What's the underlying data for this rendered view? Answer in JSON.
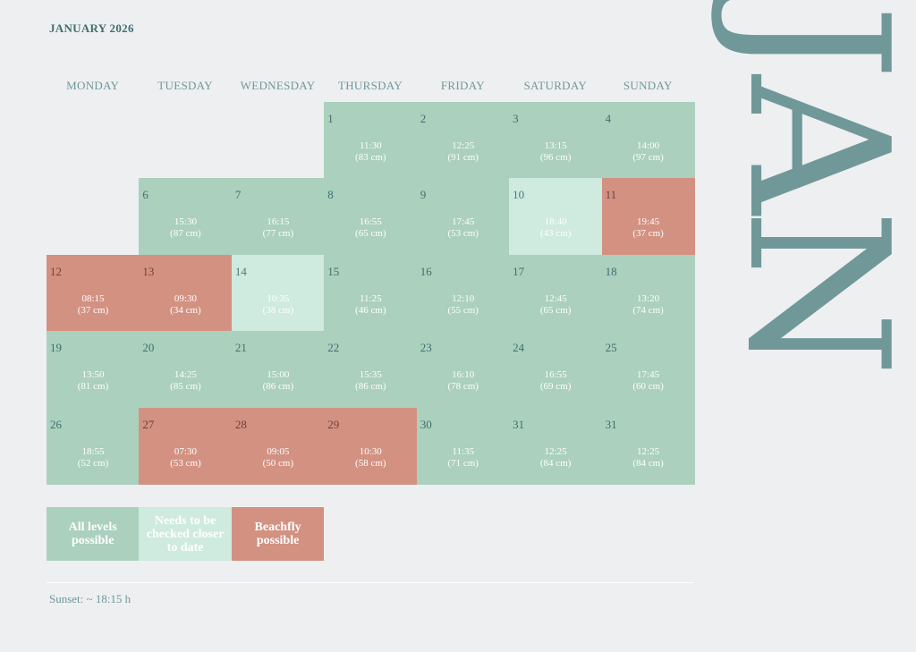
{
  "title": "JANUARY 2026",
  "big_month": "JAN",
  "weekdays": [
    "MONDAY",
    "TUESDAY",
    "WEDNESDAY",
    "THURSDAY",
    "FRIDAY",
    "SATURDAY",
    "SUNDAY"
  ],
  "colors": {
    "background": "#eeeff1",
    "all_levels": "#abd0bd",
    "check_later": "#cfeadf",
    "beachfly": "#d39182",
    "text_accent": "#3f6f6f",
    "big_month": "#709899"
  },
  "days": [
    {
      "day": "1",
      "time": "11:30",
      "height": "(83 cm)",
      "status": "g"
    },
    {
      "day": "2",
      "time": "12:25",
      "height": "(91 cm)",
      "status": "g"
    },
    {
      "day": "3",
      "time": "13:15",
      "height": "(96 cm)",
      "status": "g"
    },
    {
      "day": "4",
      "time": "14:00",
      "height": "(97 cm)",
      "status": "g"
    },
    {
      "day": "6",
      "time": "15:30",
      "height": "(87 cm)",
      "status": "g"
    },
    {
      "day": "7",
      "time": "16:15",
      "height": "(77 cm)",
      "status": "g"
    },
    {
      "day": "8",
      "time": "16:55",
      "height": "(65 cm)",
      "status": "g"
    },
    {
      "day": "9",
      "time": "17:45",
      "height": "(53 cm)",
      "status": "g"
    },
    {
      "day": "10",
      "time": "18:40",
      "height": "(43 cm)",
      "status": "lg"
    },
    {
      "day": "11",
      "time": "19:45",
      "height": "(37 cm)",
      "status": "r"
    },
    {
      "day": "12",
      "time": "08:15",
      "height": "(37 cm)",
      "status": "r"
    },
    {
      "day": "13",
      "time": "09:30",
      "height": "(34 cm)",
      "status": "r"
    },
    {
      "day": "14",
      "time": "10:35",
      "height": "(38 cm)",
      "status": "lg"
    },
    {
      "day": "15",
      "time": "11:25",
      "height": "(46 cm)",
      "status": "g"
    },
    {
      "day": "16",
      "time": "12:10",
      "height": "(55 cm)",
      "status": "g"
    },
    {
      "day": "17",
      "time": "12:45",
      "height": "(65 cm)",
      "status": "g"
    },
    {
      "day": "18",
      "time": "13:20",
      "height": "(74 cm)",
      "status": "g"
    },
    {
      "day": "19",
      "time": "13:50",
      "height": "(81 cm)",
      "status": "g"
    },
    {
      "day": "20",
      "time": "14:25",
      "height": "(85 cm)",
      "status": "g"
    },
    {
      "day": "21",
      "time": "15:00",
      "height": "(86 cm)",
      "status": "g"
    },
    {
      "day": "22",
      "time": "15:35",
      "height": "(86 cm)",
      "status": "g"
    },
    {
      "day": "23",
      "time": "16:10",
      "height": "(78 cm)",
      "status": "g"
    },
    {
      "day": "24",
      "time": "16:55",
      "height": "(69 cm)",
      "status": "g"
    },
    {
      "day": "25",
      "time": "17:45",
      "height": "(60 cm)",
      "status": "g"
    },
    {
      "day": "26",
      "time": "18:55",
      "height": "(52 cm)",
      "status": "g"
    },
    {
      "day": "27",
      "time": "07:30",
      "height": "(53 cm)",
      "status": "r"
    },
    {
      "day": "28",
      "time": "09:05",
      "height": "(50 cm)",
      "status": "r"
    },
    {
      "day": "29",
      "time": "10:30",
      "height": "(58 cm)",
      "status": "r"
    },
    {
      "day": "30",
      "time": "11:35",
      "height": "(71 cm)",
      "status": "g"
    },
    {
      "day": "31",
      "time": "12:25",
      "height": "(84 cm)",
      "status": "g"
    },
    {
      "day": "31",
      "time": "12:25",
      "height": "(84 cm)",
      "status": "g"
    }
  ],
  "legend": [
    {
      "label": "All levels possible",
      "status": "g"
    },
    {
      "label": "Needs to be checked closer to date",
      "status": "lg"
    },
    {
      "label": "Beachfly possible",
      "status": "r"
    }
  ],
  "sunset": "Sunset: ~ 18:15 h"
}
